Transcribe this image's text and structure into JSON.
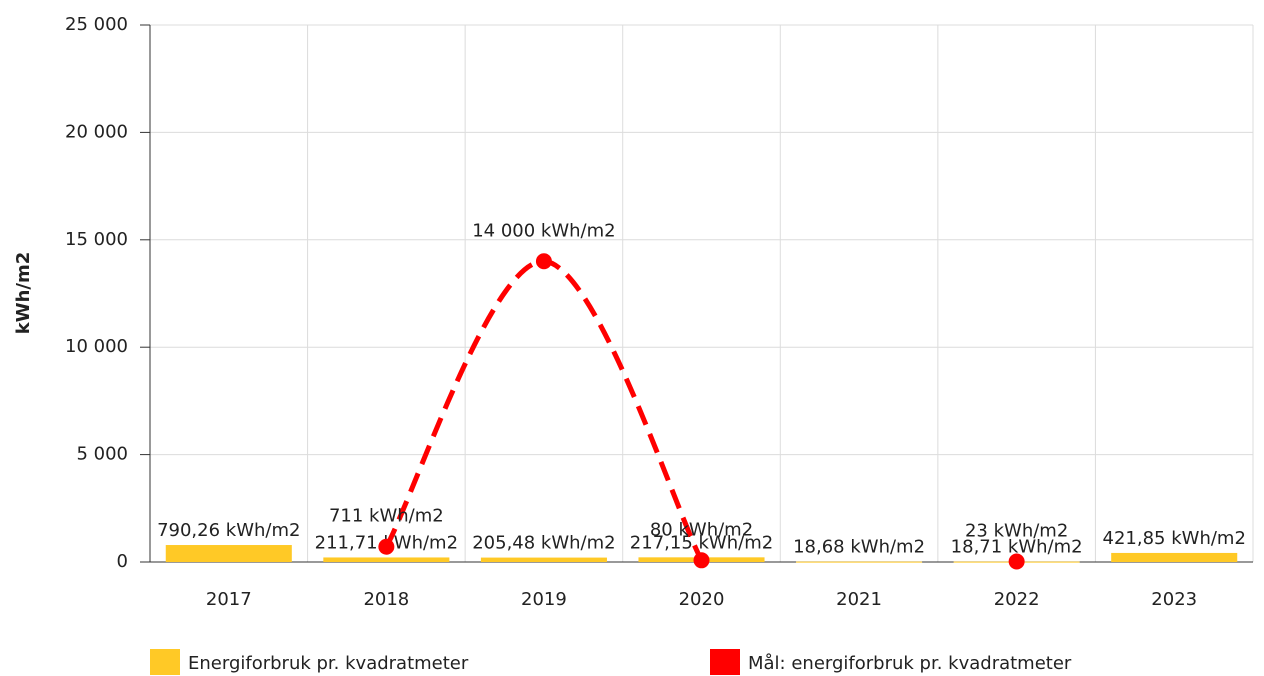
{
  "chart_data": {
    "type": "bar_line",
    "y_label": "kWh/m2",
    "categories": [
      "2017",
      "2018",
      "2019",
      "2020",
      "2021",
      "2022",
      "2023"
    ],
    "series": [
      {
        "name": "Energiforbruk pr. kvadratmeter",
        "type": "bar",
        "color": "#ffc926",
        "values": [
          790.26,
          211.71,
          205.48,
          217.15,
          18.68,
          18.71,
          421.85
        ],
        "value_labels": [
          "790,26 kWh/m2",
          "211,71 kWh/m2",
          "205,48 kWh/m2",
          "217,15 kWh/m2",
          "18,68 kWh/m2",
          "18,71 kWh/m2",
          "421,85 kWh/m2"
        ]
      },
      {
        "name": "Mål: energiforbruk pr. kvadratmeter",
        "type": "line",
        "color": "#ff0000",
        "values": [
          null,
          711,
          14000,
          80,
          null,
          23,
          null
        ],
        "value_labels": [
          null,
          "711 kWh/m2",
          "14 000 kWh/m2",
          "80 kWh/m2",
          null,
          "23 kWh/m2",
          null
        ]
      }
    ],
    "ylim": [
      0,
      25000
    ],
    "yticks": [
      0,
      {
        "value": 5000,
        "label": "5 000"
      },
      {
        "value": 10000,
        "label": "10 000"
      },
      {
        "value": 15000,
        "label": "15 000"
      },
      {
        "value": 20000,
        "label": "20 000"
      },
      {
        "value": 25000,
        "label": "25 000"
      }
    ],
    "grid": true
  }
}
